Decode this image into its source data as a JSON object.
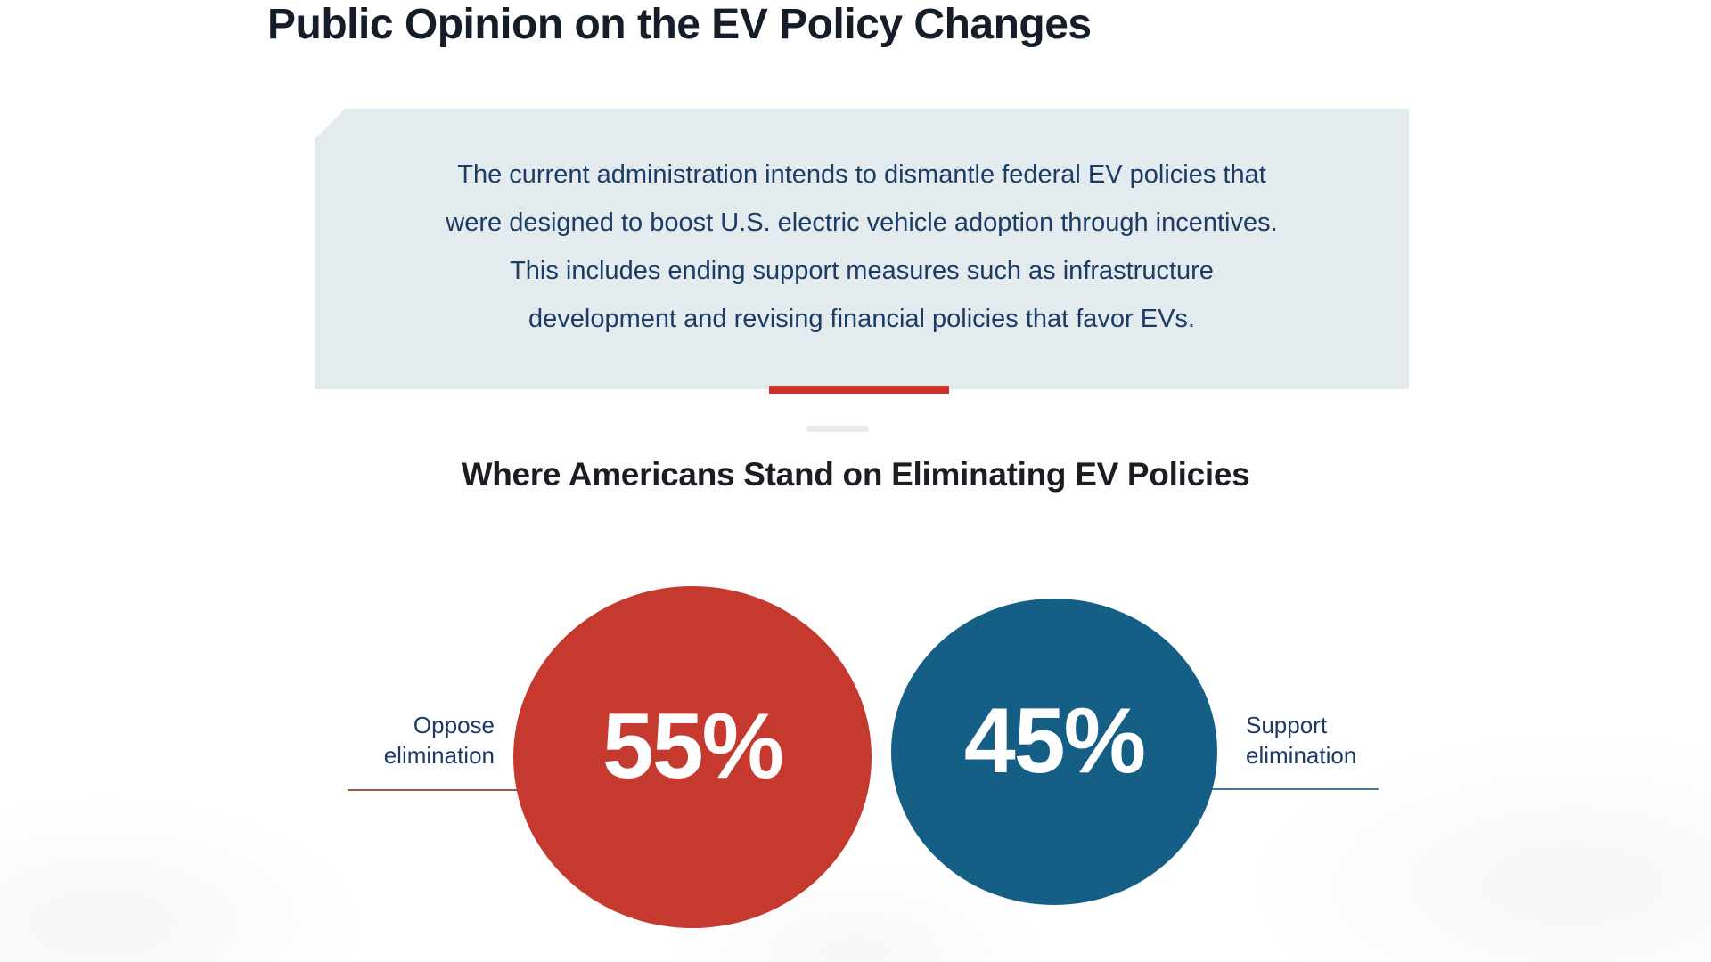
{
  "page": {
    "title": "Public Opinion on the EV Policy Changes",
    "intro_lines": [
      "The current administration intends to dismantle federal EV policies that",
      "were designed to boost U.S. electric vehicle adoption through incentives.",
      "This includes ending support measures such as infrastructure",
      "development and revising financial policies that favor EVs."
    ],
    "section_title": "Where Americans Stand on Eliminating EV Policies"
  },
  "chart_data": {
    "type": "pie",
    "title": "Where Americans Stand on Eliminating EV Policies",
    "unit": "percent",
    "legend_position": "sides",
    "series": [
      {
        "label": "Oppose elimination",
        "label_line1": "Oppose",
        "label_line2": "elimination",
        "value": 55,
        "display": "55%",
        "color": "#c5392e"
      },
      {
        "label": "Support elimination",
        "label_line1": "Support",
        "label_line2": "elimination",
        "value": 45,
        "display": "45%",
        "color": "#155e86"
      }
    ]
  },
  "colors": {
    "oppose_red": "#c5392e",
    "support_blue": "#155e86",
    "intro_box_bg": "#e3ebee",
    "body_navy_text": "#1c3c66",
    "heading_dark": "#141d28",
    "accent_bar_red": "#cb3329",
    "oppose_connector": "#a05a50",
    "support_connector": "#46789b"
  }
}
